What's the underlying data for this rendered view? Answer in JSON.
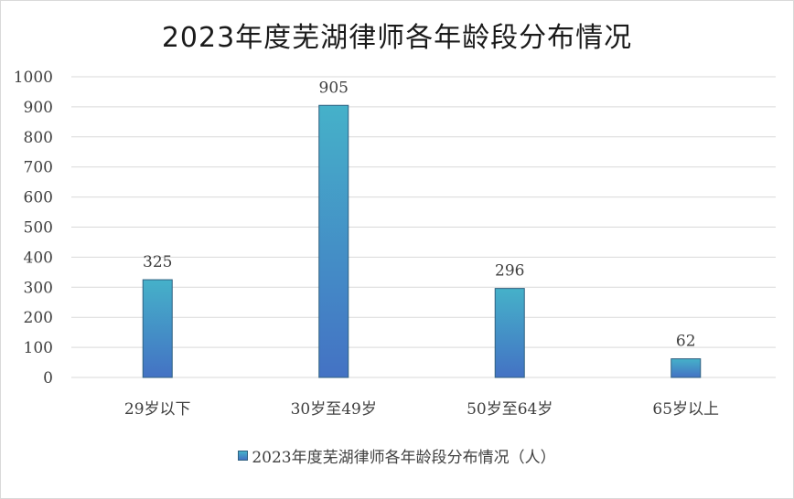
{
  "chart_data": {
    "type": "bar",
    "title": "2023年度芜湖律师各年龄段分布情况",
    "categories": [
      "29岁以下",
      "30岁至49岁",
      "50岁至64岁",
      "65岁以上"
    ],
    "series": [
      {
        "name": "2023年度芜湖律师各年龄段分布情况（人）",
        "values": [
          325,
          905,
          296,
          62
        ]
      }
    ],
    "ylim": [
      0,
      1000
    ],
    "yticks": [
      0,
      100,
      200,
      300,
      400,
      500,
      600,
      700,
      800,
      900,
      1000
    ],
    "grid": true,
    "legend_position": "bottom",
    "colors": {
      "bar_top": "#45b1c9",
      "bar_bottom": "#4472c4",
      "bar_border": "#2f6080",
      "grid": "#d9d9d9"
    }
  }
}
